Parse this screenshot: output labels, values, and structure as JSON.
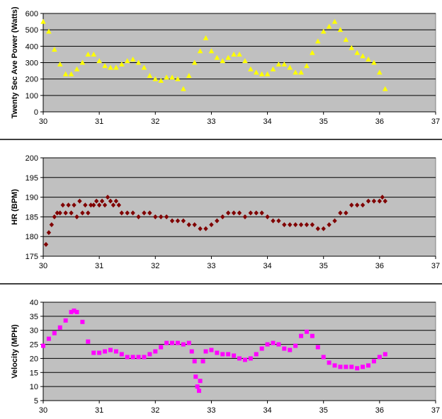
{
  "chart_data": [
    {
      "type": "scatter",
      "ylabel": "Twenty Sec Ave Power (Watts)",
      "xlabel": "",
      "xlim": [
        30,
        37
      ],
      "ylim": [
        0,
        600
      ],
      "xticks": [
        30,
        31,
        32,
        33,
        34,
        35,
        36,
        37
      ],
      "yticks": [
        0,
        100,
        200,
        300,
        400,
        500,
        600
      ],
      "grid": true,
      "marker": "triangle",
      "colors": {
        "marker": "#ffff00",
        "plot_bg": "#c0c0c0",
        "grid": "#000000"
      },
      "x": [
        30.0,
        30.1,
        30.2,
        30.3,
        30.4,
        30.5,
        30.6,
        30.7,
        30.8,
        30.9,
        31.0,
        31.1,
        31.2,
        31.3,
        31.4,
        31.5,
        31.6,
        31.7,
        31.8,
        31.9,
        32.0,
        32.1,
        32.2,
        32.3,
        32.4,
        32.5,
        32.6,
        32.7,
        32.8,
        32.9,
        33.0,
        33.1,
        33.2,
        33.3,
        33.4,
        33.5,
        33.6,
        33.7,
        33.8,
        33.9,
        34.0,
        34.1,
        34.2,
        34.3,
        34.4,
        34.5,
        34.6,
        34.7,
        34.8,
        34.9,
        35.0,
        35.1,
        35.2,
        35.3,
        35.4,
        35.5,
        35.6,
        35.7,
        35.8,
        35.9,
        36.0,
        36.1
      ],
      "y": [
        550,
        490,
        380,
        290,
        230,
        230,
        260,
        300,
        350,
        350,
        310,
        280,
        270,
        270,
        290,
        310,
        320,
        300,
        270,
        220,
        200,
        190,
        210,
        210,
        200,
        140,
        220,
        300,
        370,
        450,
        370,
        330,
        310,
        330,
        350,
        350,
        310,
        260,
        240,
        230,
        230,
        260,
        290,
        290,
        270,
        240,
        240,
        280,
        360,
        430,
        490,
        520,
        550,
        500,
        440,
        390,
        360,
        340,
        320,
        300,
        240,
        140
      ]
    },
    {
      "type": "scatter",
      "ylabel": "HR (BPM)",
      "xlabel": "",
      "xlim": [
        30,
        37
      ],
      "ylim": [
        175,
        200
      ],
      "xticks": [
        30,
        31,
        32,
        33,
        34,
        35,
        36,
        37
      ],
      "yticks": [
        175,
        180,
        185,
        190,
        195,
        200
      ],
      "grid": true,
      "marker": "diamond",
      "colors": {
        "marker": "#800000",
        "plot_bg": "#c0c0c0",
        "grid": "#000000"
      },
      "x": [
        30.05,
        30.1,
        30.15,
        30.2,
        30.25,
        30.3,
        30.35,
        30.4,
        30.45,
        30.5,
        30.55,
        30.6,
        30.65,
        30.7,
        30.75,
        30.8,
        30.85,
        30.9,
        30.95,
        31.0,
        31.05,
        31.1,
        31.15,
        31.2,
        31.25,
        31.3,
        31.35,
        31.4,
        31.5,
        31.6,
        31.7,
        31.8,
        31.9,
        32.0,
        32.1,
        32.2,
        32.3,
        32.4,
        32.5,
        32.6,
        32.7,
        32.8,
        32.9,
        33.0,
        33.1,
        33.2,
        33.3,
        33.4,
        33.5,
        33.6,
        33.7,
        33.8,
        33.9,
        34.0,
        34.1,
        34.2,
        34.3,
        34.4,
        34.5,
        34.6,
        34.7,
        34.8,
        34.9,
        35.0,
        35.1,
        35.2,
        35.3,
        35.4,
        35.5,
        35.6,
        35.7,
        35.8,
        35.9,
        36.0,
        36.05,
        36.1
      ],
      "y": [
        178,
        181,
        183,
        185,
        186,
        186,
        188,
        186,
        188,
        186,
        188,
        185,
        189,
        186,
        188,
        186,
        188,
        188,
        189,
        188,
        189,
        188,
        190,
        189,
        188,
        189,
        188,
        186,
        186,
        186,
        185,
        186,
        186,
        185,
        185,
        185,
        184,
        184,
        184,
        183,
        183,
        182,
        182,
        183,
        184,
        185,
        186,
        186,
        186,
        185,
        186,
        186,
        186,
        185,
        184,
        184,
        183,
        183,
        183,
        183,
        183,
        183,
        182,
        182,
        183,
        184,
        186,
        186,
        188,
        188,
        188,
        189,
        189,
        189,
        190,
        189
      ]
    },
    {
      "type": "scatter",
      "ylabel": "Velocity (MPH)",
      "xlabel": "",
      "xlim": [
        30,
        37
      ],
      "ylim": [
        5,
        40
      ],
      "xticks": [
        30,
        31,
        32,
        33,
        34,
        35,
        36,
        37
      ],
      "yticks": [
        5,
        10,
        15,
        20,
        25,
        30,
        35,
        40
      ],
      "grid": true,
      "marker": "square",
      "colors": {
        "marker": "#ff00ff",
        "plot_bg": "#c0c0c0",
        "grid": "#000000"
      },
      "x": [
        30.0,
        30.1,
        30.2,
        30.3,
        30.4,
        30.5,
        30.55,
        30.6,
        30.7,
        30.8,
        30.9,
        31.0,
        31.1,
        31.2,
        31.3,
        31.4,
        31.5,
        31.6,
        31.7,
        31.8,
        31.9,
        32.0,
        32.1,
        32.2,
        32.3,
        32.4,
        32.5,
        32.6,
        32.65,
        32.7,
        32.72,
        32.75,
        32.78,
        32.8,
        32.85,
        32.9,
        33.0,
        33.1,
        33.2,
        33.3,
        33.4,
        33.5,
        33.6,
        33.7,
        33.8,
        33.9,
        34.0,
        34.1,
        34.2,
        34.3,
        34.4,
        34.5,
        34.6,
        34.7,
        34.8,
        34.9,
        35.0,
        35.1,
        35.2,
        35.3,
        35.4,
        35.5,
        35.6,
        35.7,
        35.8,
        35.9,
        36.0,
        36.1
      ],
      "y": [
        24.5,
        27,
        29,
        31,
        33.5,
        36.5,
        37,
        36.5,
        33,
        26,
        22,
        22,
        22.5,
        23,
        22.5,
        21.5,
        20.5,
        20.5,
        20.5,
        20.5,
        21.5,
        22.5,
        24,
        25.5,
        25.5,
        25.5,
        25,
        25.5,
        22.5,
        19,
        13.5,
        10,
        8.5,
        12,
        19,
        22.5,
        23,
        22,
        21.5,
        21.5,
        21,
        20,
        19.5,
        20,
        21.5,
        23.5,
        25,
        25.5,
        25,
        23.5,
        23,
        24.5,
        28,
        29.5,
        28,
        24,
        20.5,
        18.5,
        17.5,
        17,
        17,
        17,
        16.5,
        17,
        17.5,
        19,
        20.5,
        21.5
      ]
    }
  ]
}
